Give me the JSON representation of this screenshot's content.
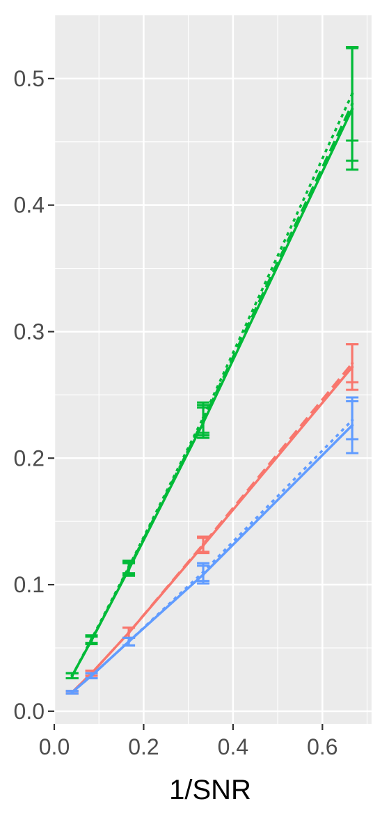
{
  "chart_data": {
    "type": "line",
    "xlabel": "1/SNR",
    "ylabel": "",
    "xlim": [
      0.0,
      0.71
    ],
    "ylim": [
      -0.01,
      0.55
    ],
    "x_ticks": [
      0.0,
      0.2,
      0.4,
      0.6
    ],
    "x_tick_labels": [
      "0.0",
      "0.2",
      "0.4",
      "0.6"
    ],
    "y_ticks": [
      0.0,
      0.1,
      0.2,
      0.3,
      0.4,
      0.5
    ],
    "y_tick_labels": [
      "0.0",
      "0.1",
      "0.2",
      "0.3",
      "0.4",
      "0.5"
    ],
    "grid": true,
    "legend": "none",
    "x": [
      0.04,
      0.0833,
      0.1667,
      0.3333,
      0.6667
    ],
    "series": [
      {
        "color": "#00BA38",
        "linestyle": "solid",
        "values": [
          0.028,
          0.056,
          0.112,
          0.228,
          0.476
        ],
        "errors": [
          0.002,
          0.003,
          0.005,
          0.012,
          0.048
        ]
      },
      {
        "color": "#00BA38",
        "linestyle": "dashed",
        "values": [
          0.028,
          0.056,
          0.113,
          0.23,
          0.48
        ],
        "errors": [
          0.002,
          0.003,
          0.005,
          0.012,
          0.045
        ]
      },
      {
        "color": "#00BA38",
        "linestyle": "dotted",
        "values": [
          0.028,
          0.057,
          0.114,
          0.232,
          0.488
        ],
        "errors": [
          0.002,
          0.003,
          0.005,
          0.012,
          0.037
        ]
      },
      {
        "color": "#F8766D",
        "linestyle": "solid",
        "values": [
          0.015,
          0.03,
          0.062,
          0.131,
          0.272
        ],
        "errors": [
          0.001,
          0.002,
          0.004,
          0.006,
          0.018
        ]
      },
      {
        "color": "#F8766D",
        "linestyle": "dashed",
        "values": [
          0.015,
          0.03,
          0.062,
          0.132,
          0.275
        ],
        "errors": [
          0.001,
          0.002,
          0.004,
          0.006,
          0.015
        ]
      },
      {
        "color": "#619CFF",
        "linestyle": "solid",
        "values": [
          0.015,
          0.028,
          0.055,
          0.108,
          0.226
        ],
        "errors": [
          0.001,
          0.002,
          0.003,
          0.007,
          0.022
        ]
      },
      {
        "color": "#619CFF",
        "linestyle": "dotted",
        "values": [
          0.015,
          0.028,
          0.055,
          0.11,
          0.23
        ],
        "errors": [
          0.001,
          0.002,
          0.003,
          0.007,
          0.015
        ]
      }
    ]
  }
}
